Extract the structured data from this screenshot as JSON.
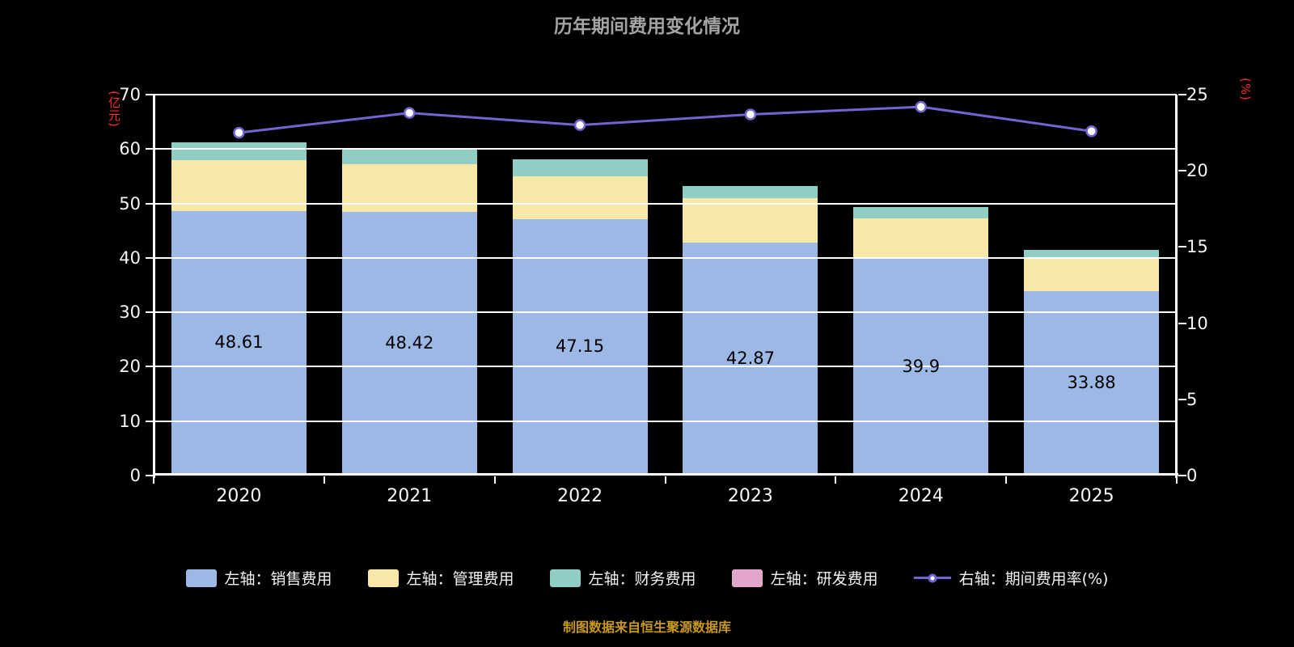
{
  "chart_data": {
    "type": "bar",
    "stacked": true,
    "title": "历年期间费用变化情况",
    "categories": [
      "2020",
      "2021",
      "2022",
      "2023",
      "2024",
      "2025"
    ],
    "series": [
      {
        "name": "左轴：销售费用",
        "type": "bar",
        "axis": "left",
        "color": "#9CB8E4",
        "values": [
          48.61,
          48.42,
          47.15,
          42.87,
          39.9,
          33.88
        ]
      },
      {
        "name": "左轴：管理费用",
        "type": "bar",
        "axis": "left",
        "color": "#F7E8A8",
        "values": [
          9.4,
          8.8,
          7.9,
          8.1,
          7.3,
          6.1
        ]
      },
      {
        "name": "左轴：财务费用",
        "type": "bar",
        "axis": "left",
        "color": "#8FCDC5",
        "values": [
          3.2,
          3.0,
          3.0,
          2.2,
          2.1,
          1.5
        ]
      },
      {
        "name": "左轴：研发费用",
        "type": "bar",
        "axis": "left",
        "color": "#E2A6CB",
        "values": [
          0,
          0,
          0,
          0,
          0,
          0
        ]
      },
      {
        "name": "右轴：期间费用率(%)",
        "type": "line",
        "axis": "right",
        "color": "#7165D2",
        "values": [
          22.5,
          23.8,
          23.0,
          23.7,
          24.2,
          22.6
        ]
      }
    ],
    "bar_value_labels": [
      "48.61",
      "48.42",
      "47.15",
      "42.87",
      "39.9",
      "33.88"
    ],
    "left_axis": {
      "label": "(亿元)",
      "min": 0,
      "max": 70,
      "step": 10,
      "ticks": [
        "0",
        "10",
        "20",
        "30",
        "40",
        "50",
        "60",
        "70"
      ],
      "label_color": "#FF2A2A"
    },
    "right_axis": {
      "label": "(%)",
      "min": 0,
      "max": 25,
      "step": 5,
      "ticks": [
        "0",
        "5",
        "10",
        "15",
        "20",
        "25"
      ],
      "label_color": "#FF2A2A"
    },
    "grid": true,
    "legend_position": "bottom",
    "background_color": "#000000",
    "source_note": "制图数据来自恒生聚源数据库"
  }
}
